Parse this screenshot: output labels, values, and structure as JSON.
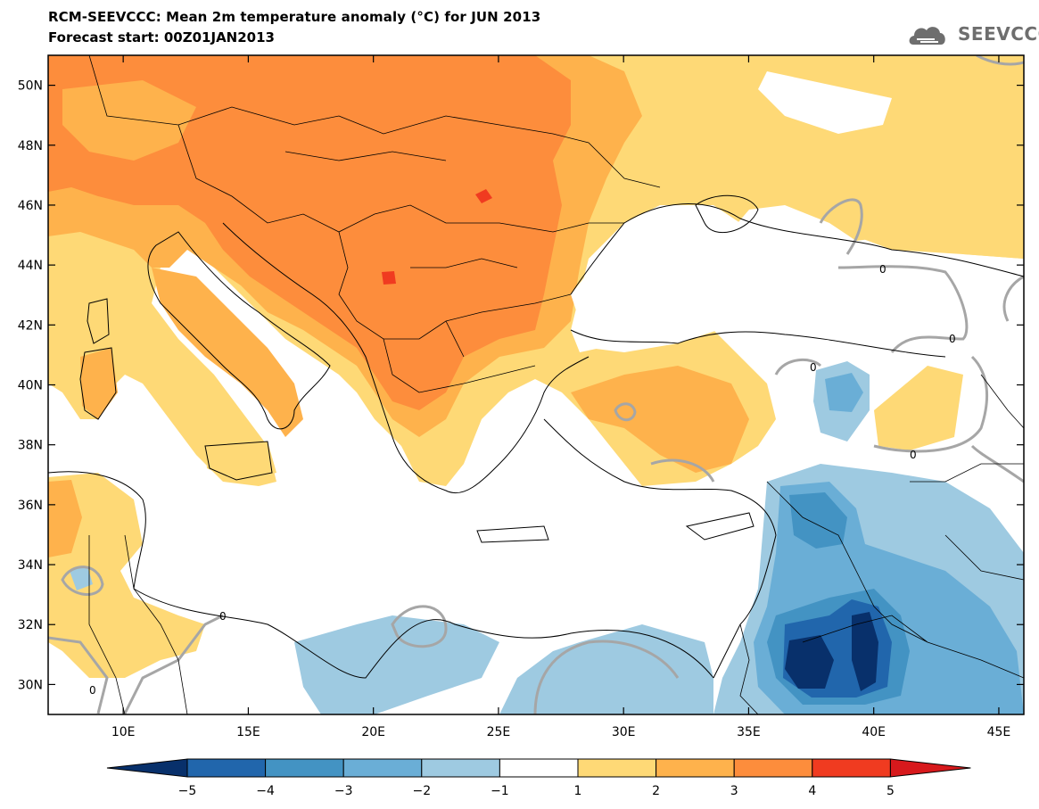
{
  "header": {
    "title": "RCM-SEEVCCC: Mean 2m temperature anomaly (°C) for JUN 2013",
    "subtitle": "Forecast start: 00Z01JAN2013",
    "logo_text": "SEEVCCC"
  },
  "map": {
    "lon_range": [
      7,
      46
    ],
    "lat_range": [
      29,
      51
    ],
    "lon_ticks": [
      {
        "value": 10,
        "label": "10E"
      },
      {
        "value": 15,
        "label": "15E"
      },
      {
        "value": 20,
        "label": "20E"
      },
      {
        "value": 25,
        "label": "25E"
      },
      {
        "value": 30,
        "label": "30E"
      },
      {
        "value": 35,
        "label": "35E"
      },
      {
        "value": 40,
        "label": "40E"
      },
      {
        "value": 45,
        "label": "45E"
      }
    ],
    "lat_ticks": [
      {
        "value": 30,
        "label": "30N"
      },
      {
        "value": 32,
        "label": "32N"
      },
      {
        "value": 34,
        "label": "34N"
      },
      {
        "value": 36,
        "label": "36N"
      },
      {
        "value": 38,
        "label": "38N"
      },
      {
        "value": 40,
        "label": "40N"
      },
      {
        "value": 42,
        "label": "42N"
      },
      {
        "value": 44,
        "label": "44N"
      },
      {
        "value": 46,
        "label": "46N"
      },
      {
        "value": 48,
        "label": "48N"
      },
      {
        "value": 50,
        "label": "50N"
      }
    ],
    "contour_label": "0"
  },
  "colorbar": {
    "labels": [
      "−5",
      "−4",
      "−3",
      "−2",
      "−1",
      "1",
      "2",
      "3",
      "4",
      "5"
    ],
    "colors": [
      "#08306b",
      "#2166ac",
      "#4393c3",
      "#6aaed6",
      "#9ecae1",
      "#ffffff",
      "#fed976",
      "#feb24c",
      "#fd8d3c",
      "#f03b20",
      "#d7191c"
    ]
  }
}
